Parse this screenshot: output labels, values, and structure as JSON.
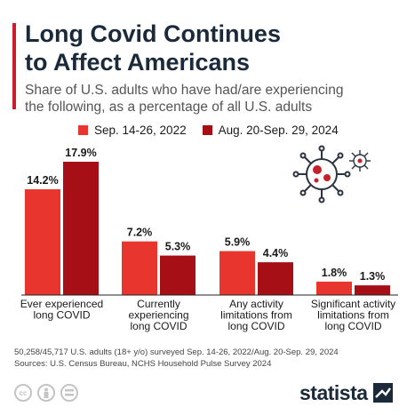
{
  "header": {
    "title": "Long Covid Continues\nto Affect Americans",
    "subtitle": "Share of U.S. adults who have had/are experiencing\nthe following, as a percentage of all U.S. adults"
  },
  "colors": {
    "accent": "#c8202b",
    "series_2022": "#e8352e",
    "series_2024": "#a50f15",
    "title": "#1b2a3a"
  },
  "chart_data": {
    "type": "bar",
    "categories": [
      "Ever experienced\nlong COVID",
      "Currently\nexperiencing\nlong COVID",
      "Any activity\nlimitations from\nlong COVID",
      "Significant activity\nlimitations from\nlong COVID"
    ],
    "series": [
      {
        "name": "Sep. 14-26, 2022",
        "values": [
          14.2,
          7.2,
          5.9,
          1.8
        ],
        "labels": [
          "14.2%",
          "7.2%",
          "5.9%",
          "1.8%"
        ]
      },
      {
        "name": "Aug. 20-Sep. 29, 2024",
        "values": [
          17.9,
          5.3,
          4.4,
          1.3
        ],
        "labels": [
          "17.9%",
          "5.3%",
          "4.4%",
          "1.3%"
        ]
      }
    ],
    "ylim": [
      0,
      17.9
    ],
    "grid": false,
    "legend": "top"
  },
  "footer": {
    "note": "50,258/45,717 U.S. adults (18+ y/o) surveyed Sep. 14-26, 2022/Aug. 20-Sep. 29, 2024",
    "sources": "Sources: U.S. Census Bureau, NCHS Household Pulse Survey 2024",
    "brand": "statista",
    "icons": [
      "cc-icon",
      "person-icon",
      "equals-icon"
    ]
  }
}
